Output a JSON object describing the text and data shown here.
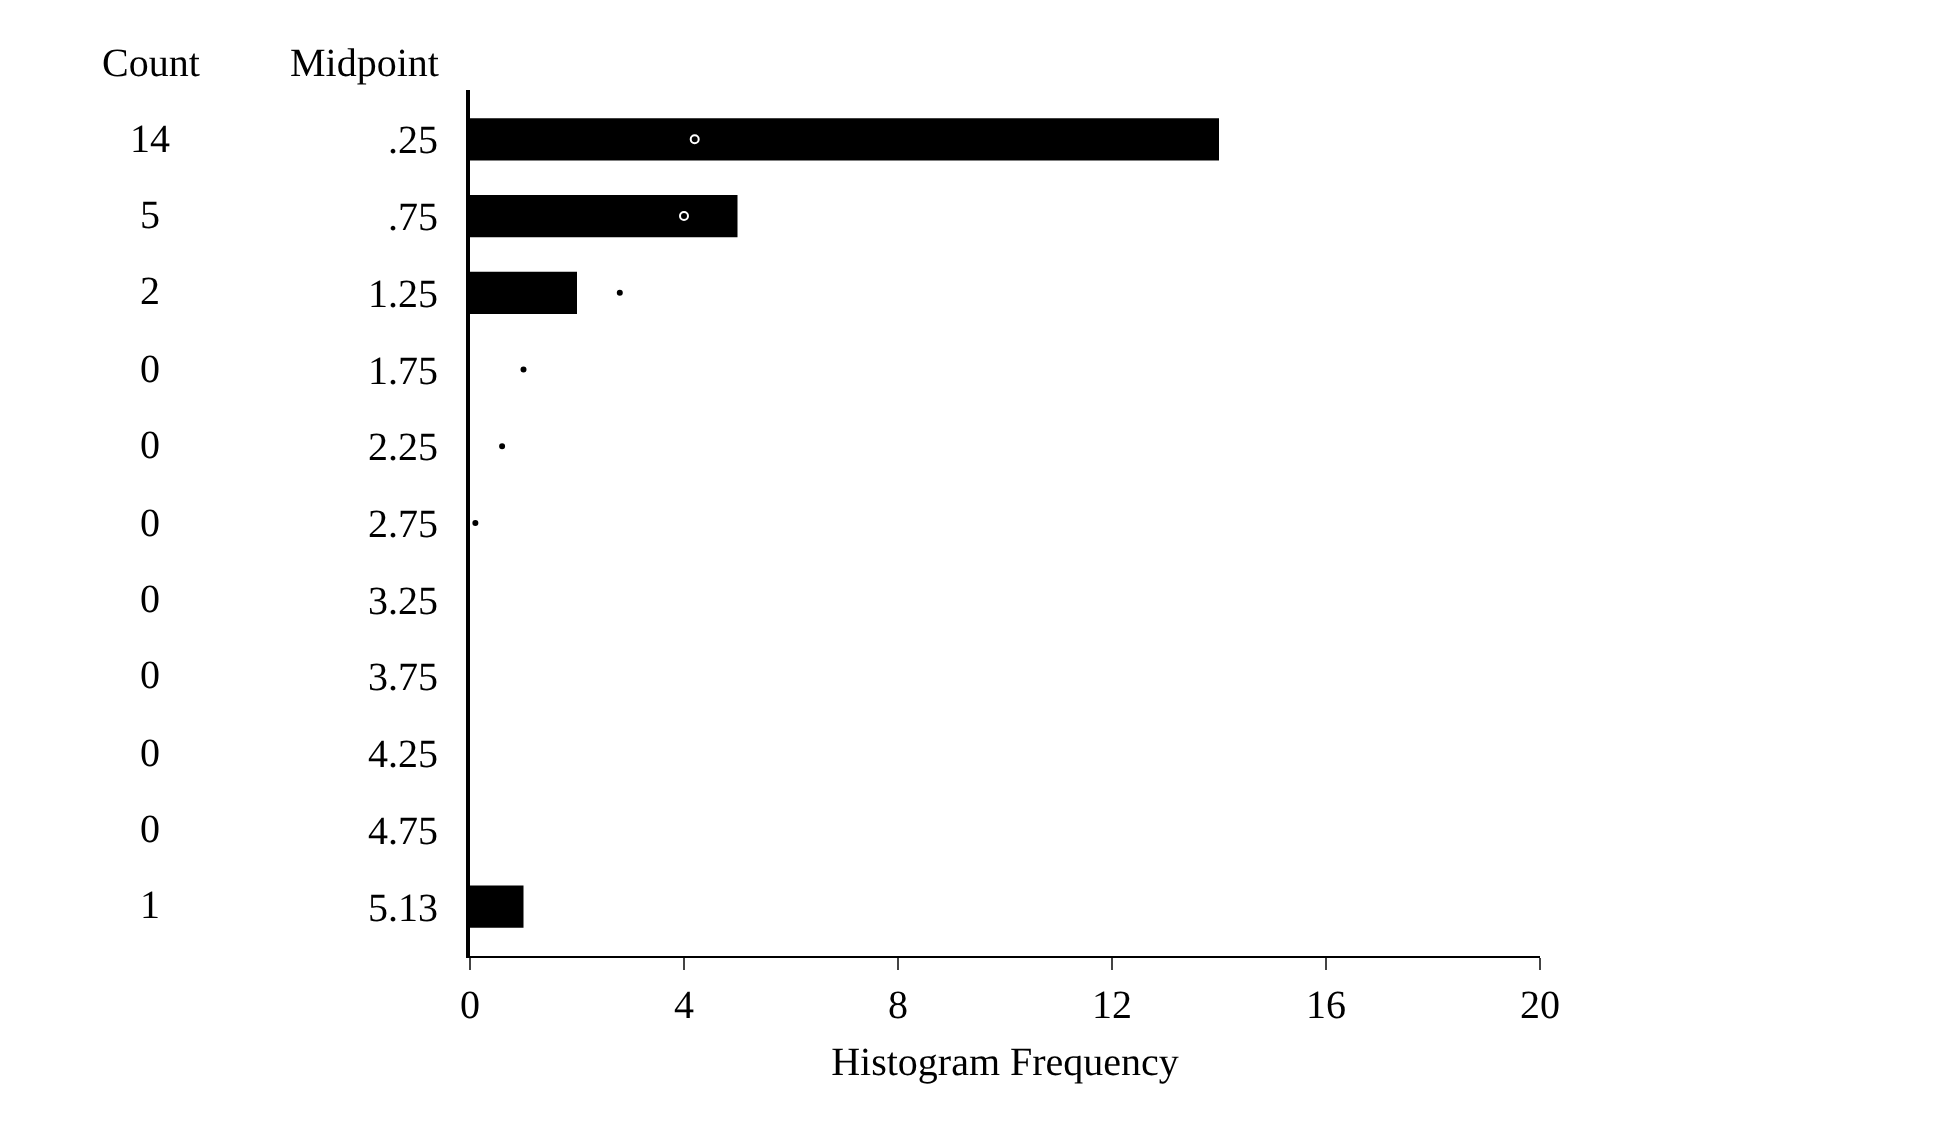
{
  "chart_data": {
    "type": "bar",
    "orientation": "horizontal",
    "xlabel": "Histogram Frequency",
    "ylabel": "Midpoint",
    "categories": [
      ".25",
      ".75",
      "1.25",
      "1.75",
      "2.25",
      "2.75",
      "3.25",
      "3.75",
      "4.25",
      "4.75",
      "5.13"
    ],
    "series": [
      {
        "type": "bar",
        "color": "#000000",
        "values": [
          14,
          5,
          2,
          0,
          0,
          0,
          0,
          0,
          0,
          0,
          1
        ],
        "value_labels": [
          "14",
          "5",
          "2",
          "0",
          "0",
          "0",
          "0",
          "0",
          "0",
          "0",
          "1"
        ]
      },
      {
        "type": "scatter",
        "color": "#000000",
        "marker": "circle",
        "values": [
          4.2,
          4.0,
          2.8,
          1.0,
          0.6,
          0.1,
          null,
          null,
          null,
          null,
          null
        ]
      }
    ],
    "xlim": [
      0,
      20
    ],
    "xticks": [
      0,
      4,
      8,
      12,
      16,
      20
    ],
    "annotations": [
      "Count"
    ],
    "grid": false,
    "legend": false
  }
}
